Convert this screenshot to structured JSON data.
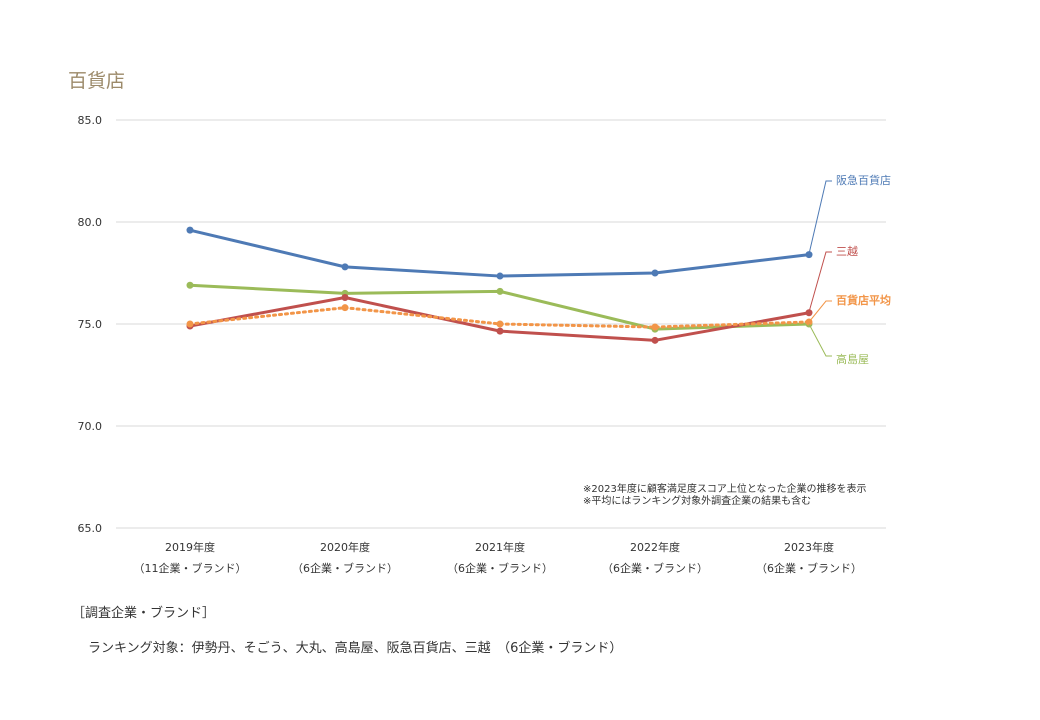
{
  "chart_data": {
    "type": "line",
    "title": "百貨店",
    "categories": [
      "2019年度",
      "2020年度",
      "2021年度",
      "2022年度",
      "2023年度"
    ],
    "category_sublabels": [
      "（11企業・ブランド）",
      "（6企業・ブランド）",
      "（6企業・ブランド）",
      "（6企業・ブランド）",
      "（6企業・ブランド）"
    ],
    "ylim": [
      65.0,
      85.0
    ],
    "yticks": [
      "65.0",
      "70.0",
      "75.0",
      "80.0",
      "85.0"
    ],
    "grid": true,
    "series": [
      {
        "name": "阪急百貨店",
        "color": "#4e7ab5",
        "style": "solid",
        "values": [
          79.6,
          77.8,
          77.35,
          77.5,
          78.4
        ]
      },
      {
        "name": "三越",
        "color": "#c0504d",
        "style": "solid",
        "values": [
          74.9,
          76.3,
          74.65,
          74.2,
          75.55
        ]
      },
      {
        "name": "百貨店平均",
        "color": "#f29548",
        "style": "dotted",
        "values": [
          75.0,
          75.8,
          75.0,
          74.85,
          75.1
        ]
      },
      {
        "name": "高島屋",
        "color": "#9bbb59",
        "style": "solid",
        "values": [
          76.9,
          76.5,
          76.6,
          74.75,
          75.0
        ]
      }
    ],
    "notes": [
      "※2023年度に顧客満足度スコア上位となった企業の推移を表示",
      "※平均にはランキング対象外調査企業の結果も含む"
    ]
  },
  "footer": {
    "heading": "［調査企業・ブランド］",
    "body": "ランキング対象：伊勢丹、そごう、大丸、高島屋、阪急百貨店、三越　（6企業・ブランド）"
  }
}
